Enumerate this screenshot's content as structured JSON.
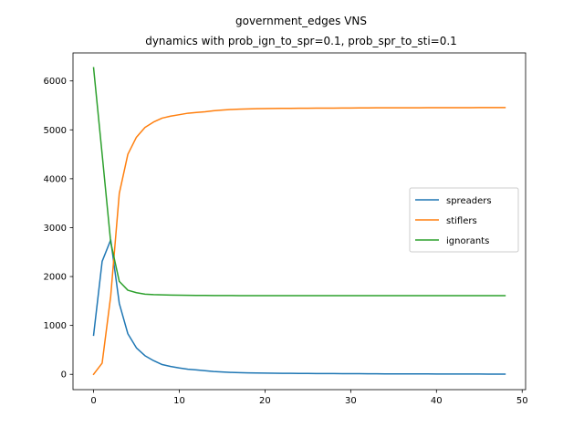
{
  "chart_data": {
    "type": "line",
    "title_line1": "government_edges VNS",
    "title_line2": "dynamics with prob_ign_to_spr=0.1, prob_spr_to_sti=0.1",
    "xlabel": "",
    "ylabel": "",
    "xlim": [
      -2.4,
      50.4
    ],
    "ylim": [
      -313,
      6573
    ],
    "xticks": [
      0,
      10,
      20,
      30,
      40,
      50
    ],
    "yticks": [
      0,
      1000,
      2000,
      3000,
      4000,
      5000,
      6000
    ],
    "grid": false,
    "legend_position": "center-right",
    "x": [
      0,
      1,
      2,
      3,
      4,
      5,
      6,
      7,
      8,
      9,
      10,
      11,
      12,
      13,
      14,
      15,
      16,
      17,
      18,
      19,
      20,
      21,
      22,
      23,
      24,
      25,
      26,
      27,
      28,
      29,
      30,
      31,
      32,
      33,
      34,
      35,
      36,
      37,
      38,
      39,
      40,
      41,
      42,
      43,
      44,
      45,
      46,
      47,
      48
    ],
    "series": [
      {
        "name": "spreaders",
        "color": "#1f77b4",
        "values": [
          800,
          2310,
          2750,
          1450,
          830,
          540,
          380,
          280,
          200,
          160,
          130,
          105,
          90,
          75,
          58,
          48,
          40,
          34,
          30,
          27,
          25,
          23,
          21,
          20,
          19,
          18,
          17,
          16,
          15,
          14,
          13,
          13,
          12,
          11,
          10,
          10,
          9,
          9,
          8,
          8,
          7,
          7,
          7,
          6,
          6,
          6,
          5,
          5,
          5
        ]
      },
      {
        "name": "stiflers",
        "color": "#ff7f0e",
        "values": [
          0,
          230,
          1600,
          3700,
          4500,
          4850,
          5050,
          5160,
          5240,
          5280,
          5310,
          5340,
          5355,
          5370,
          5390,
          5405,
          5415,
          5422,
          5428,
          5432,
          5435,
          5437,
          5439,
          5440,
          5441,
          5442,
          5443,
          5444,
          5445,
          5446,
          5447,
          5448,
          5449,
          5450,
          5450,
          5451,
          5451,
          5452,
          5452,
          5453,
          5453,
          5453,
          5454,
          5454,
          5454,
          5455,
          5455,
          5455,
          5455
        ]
      },
      {
        "name": "ignorants",
        "color": "#2ca02c",
        "values": [
          6270,
          4500,
          2700,
          1900,
          1720,
          1670,
          1640,
          1630,
          1625,
          1620,
          1618,
          1616,
          1614,
          1613,
          1612,
          1611,
          1611,
          1610,
          1610,
          1610,
          1610,
          1610,
          1609,
          1609,
          1609,
          1609,
          1609,
          1609,
          1609,
          1609,
          1609,
          1609,
          1609,
          1609,
          1609,
          1609,
          1609,
          1609,
          1609,
          1609,
          1609,
          1609,
          1609,
          1609,
          1609,
          1609,
          1609,
          1609,
          1609
        ]
      }
    ]
  }
}
